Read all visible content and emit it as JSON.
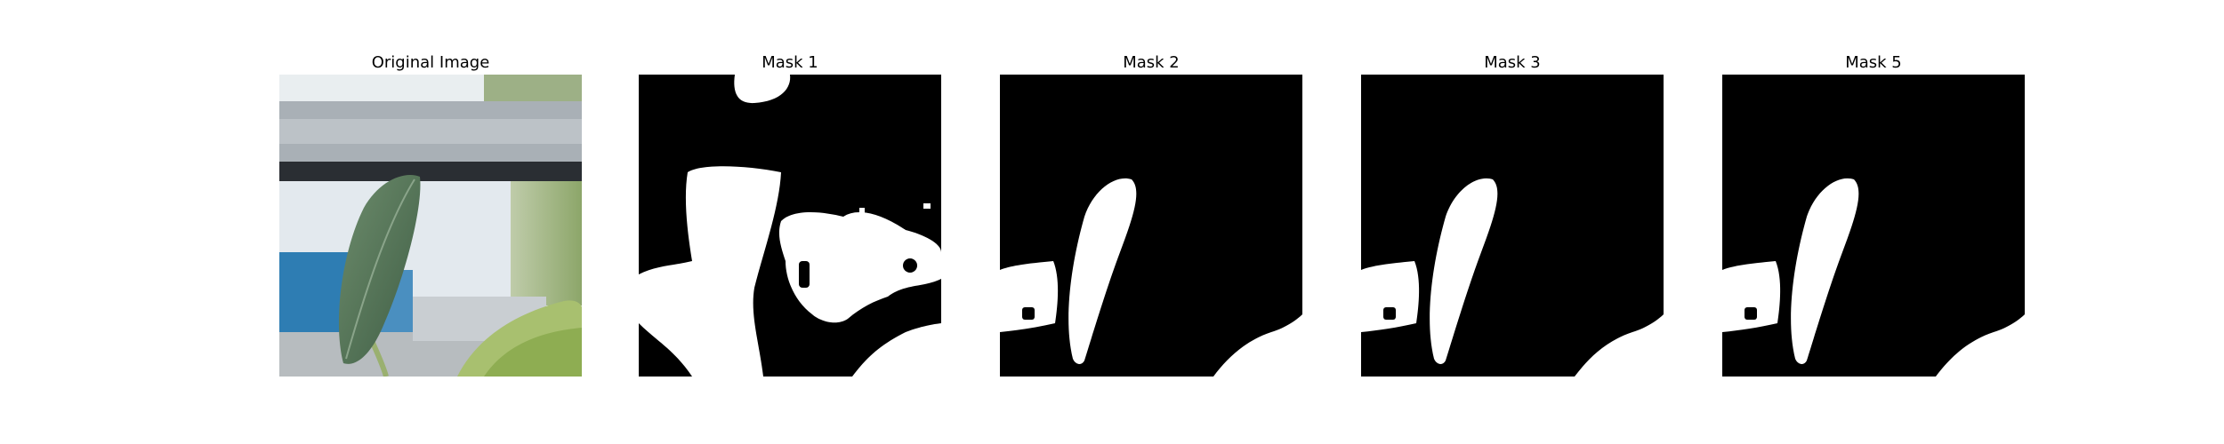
{
  "figure": {
    "panels": [
      {
        "title": "Original Image",
        "kind": "photo-leaf"
      },
      {
        "title": "Mask 1",
        "kind": "mask-1"
      },
      {
        "title": "Mask 2",
        "kind": "mask-leaf"
      },
      {
        "title": "Mask 3",
        "kind": "mask-leaf"
      },
      {
        "title": "Mask 5",
        "kind": "mask-leaf"
      }
    ]
  }
}
